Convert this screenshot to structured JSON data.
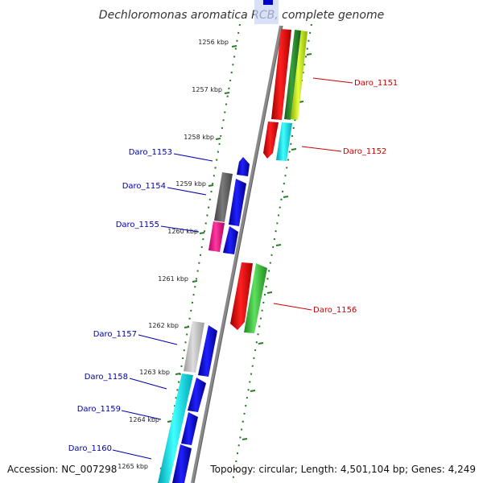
{
  "title": "Dechloromonas aromatica RCB, complete genome",
  "accession_text": "Accession: NC_007298",
  "summary_text": "Topology: circular; Length: 4,501,104 bp; Genes: 4,249",
  "colors": {
    "backbone": "#8a8a8a",
    "tick_dots": "#1f7a1f",
    "label_forward": "#cc0000",
    "label_reverse": "#0000aa"
  },
  "ticks": [
    {
      "label": "1256 kbp"
    },
    {
      "label": "1257 kbp"
    },
    {
      "label": "1258 kbp"
    },
    {
      "label": "1259 kbp"
    },
    {
      "label": "1260 kbp"
    },
    {
      "label": "1261 kbp"
    },
    {
      "label": "1262 kbp"
    },
    {
      "label": "1263 kbp"
    },
    {
      "label": "1264 kbp"
    },
    {
      "label": "1265 kbp"
    }
  ],
  "genes_forward": [
    {
      "name": "Daro_1151",
      "color": "red"
    },
    {
      "name": "Daro_1152",
      "color": "red"
    },
    {
      "name": "Daro_1156",
      "color": "red"
    }
  ],
  "genes_reverse": [
    {
      "name": "Daro_1153",
      "color": "blue"
    },
    {
      "name": "Daro_1154",
      "color": "blue"
    },
    {
      "name": "Daro_1155",
      "color": "blue"
    },
    {
      "name": "Daro_1157",
      "color": "blue"
    },
    {
      "name": "Daro_1158",
      "color": "blue"
    },
    {
      "name": "Daro_1159",
      "color": "blue"
    },
    {
      "name": "Daro_1160",
      "color": "blue"
    }
  ]
}
